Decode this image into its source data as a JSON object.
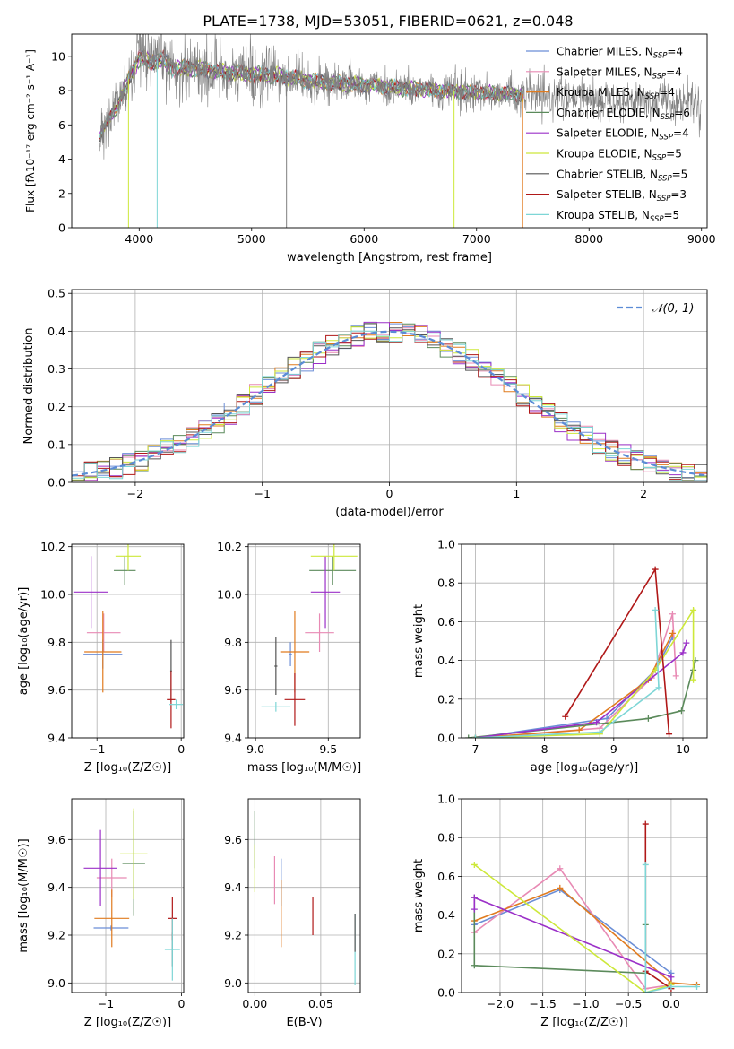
{
  "figure_title": "PLATE=1738, MJD=53051, FIBERID=0621, z=0.048",
  "series_legend": [
    {
      "name": "Chabrier MILES, N",
      "sub": "SSP",
      "suffix": "=4",
      "color": "#6b8ed6"
    },
    {
      "name": "Salpeter MILES, N",
      "sub": "SSP",
      "suffix": "=4",
      "color": "#e88ab4"
    },
    {
      "name": "Kroupa MILES, N",
      "sub": "SSP",
      "suffix": "=4",
      "color": "#e07b1f"
    },
    {
      "name": "Chabrier ELODIE, N",
      "sub": "SSP",
      "suffix": "=6",
      "color": "#5b8a5b"
    },
    {
      "name": "Salpeter ELODIE, N",
      "sub": "SSP",
      "suffix": "=4",
      "color": "#9b30c8"
    },
    {
      "name": "Kroupa ELODIE, N",
      "sub": "SSP",
      "suffix": "=5",
      "color": "#cde83a"
    },
    {
      "name": "Chabrier STELIB, N",
      "sub": "SSP",
      "suffix": "=5",
      "color": "#555555"
    },
    {
      "name": "Salpeter STELIB, N",
      "sub": "SSP",
      "suffix": "=3",
      "color": "#b01818"
    },
    {
      "name": "Kroupa STELIB, N",
      "sub": "SSP",
      "suffix": "=5",
      "color": "#7ed6d6"
    }
  ],
  "chart_data": [
    {
      "id": "spectrum",
      "type": "line",
      "xlabel": "wavelength [Angstrom, rest frame]",
      "ylabel": "Flux [fλ10⁻¹⁷ erg cm⁻² s⁻¹ A⁻¹]",
      "xlim": [
        3400,
        9050
      ],
      "ylim": [
        0,
        11.3
      ],
      "xticks": [
        4000,
        5000,
        6000,
        7000,
        8000,
        9000
      ],
      "yticks": [
        0,
        2,
        4,
        6,
        8,
        10
      ],
      "data_color": "#808080",
      "continuum": {
        "x": [
          3650,
          3700,
          3800,
          3900,
          4000,
          4100,
          4200,
          4300,
          4500,
          4700,
          4900,
          5200,
          5500,
          5800,
          6100,
          6400,
          6700,
          7000,
          7300,
          7400
        ],
        "y": [
          5.3,
          6.0,
          7.0,
          8.6,
          9.9,
          9.7,
          9.8,
          9.3,
          9.3,
          9.1,
          9.0,
          8.9,
          8.6,
          8.4,
          8.3,
          8.1,
          8.0,
          7.9,
          7.8,
          7.8
        ]
      },
      "data_extent": [
        3650,
        9000
      ],
      "model_extent": [
        3650,
        7420
      ],
      "grid": false
    },
    {
      "id": "residuals",
      "type": "histogram",
      "xlabel": "(data-model)/error",
      "ylabel": "Normed distribution",
      "xlim": [
        -2.5,
        2.5
      ],
      "ylim": [
        0,
        0.51
      ],
      "xticks": [
        -2,
        -1,
        0,
        1,
        2
      ],
      "yticks": [
        0.0,
        0.1,
        0.2,
        0.3,
        0.4,
        0.5
      ],
      "bin_width": 0.1,
      "gaussian": {
        "mean": 0,
        "sigma": 1,
        "label": "𝒩(0, 1)",
        "color": "#5b8cd6"
      },
      "grid": true,
      "legend": "top-right"
    },
    {
      "id": "age_vs_Z",
      "type": "errorbar",
      "xlabel": "Z [log₁₀(Z/Z☉)]",
      "ylabel": "age  [log₁₀(age/yr)]",
      "xlim": [
        -1.3,
        0.03
      ],
      "ylim": [
        9.4,
        10.21
      ],
      "xticks": [
        -1,
        0
      ],
      "yticks": [
        9.4,
        9.6,
        9.8,
        10.0,
        10.2
      ],
      "grid": true,
      "points": [
        {
          "x": -0.93,
          "xerr": 0.23,
          "y": 9.75,
          "yerr": 0.06,
          "color": "#6b8ed6"
        },
        {
          "x": -0.92,
          "xerr": 0.2,
          "y": 9.84,
          "yerr": 0.08,
          "color": "#e88ab4"
        },
        {
          "x": -0.93,
          "xerr": 0.22,
          "y": 9.76,
          "yerr": 0.17,
          "color": "#e07b1f"
        },
        {
          "x": -0.67,
          "xerr": 0.13,
          "y": 10.1,
          "yerr": 0.06,
          "color": "#5b8a5b"
        },
        {
          "x": -1.07,
          "xerr": 0.2,
          "y": 10.01,
          "yerr": 0.15,
          "color": "#9b30c8"
        },
        {
          "x": -0.63,
          "xerr": 0.15,
          "y": 10.16,
          "yerr": 0.06,
          "color": "#cde83a"
        },
        {
          "x": -0.12,
          "xerr": 0.01,
          "y": 9.68,
          "yerr": 0.13,
          "color": "#555555"
        },
        {
          "x": -0.12,
          "xerr": 0.05,
          "y": 9.56,
          "yerr": 0.12,
          "color": "#b01818"
        },
        {
          "x": -0.06,
          "xerr": 0.08,
          "y": 9.54,
          "yerr": 0.02,
          "color": "#7ed6d6"
        }
      ]
    },
    {
      "id": "age_vs_mass",
      "type": "errorbar",
      "xlabel": "mass [log₁₀(M/M☉)]",
      "ylabel": "",
      "xlim": [
        8.95,
        9.72
      ],
      "ylim": [
        9.4,
        10.21
      ],
      "xticks": [
        9.0,
        9.5
      ],
      "yticks": [
        9.4,
        9.6,
        9.8,
        10.0,
        10.2
      ],
      "grid": true,
      "points": [
        {
          "x": 9.24,
          "xerr": 0.01,
          "y": 9.75,
          "yerr": 0.05,
          "color": "#6b8ed6"
        },
        {
          "x": 9.44,
          "xerr": 0.1,
          "y": 9.84,
          "yerr": 0.08,
          "color": "#e88ab4"
        },
        {
          "x": 9.27,
          "xerr": 0.1,
          "y": 9.76,
          "yerr": 0.17,
          "color": "#e07b1f"
        },
        {
          "x": 9.53,
          "xerr": 0.16,
          "y": 10.1,
          "yerr": 0.06,
          "color": "#5b8a5b"
        },
        {
          "x": 9.48,
          "xerr": 0.1,
          "y": 10.01,
          "yerr": 0.15,
          "color": "#9b30c8"
        },
        {
          "x": 9.54,
          "xerr": 0.16,
          "y": 10.16,
          "yerr": 0.06,
          "color": "#cde83a"
        },
        {
          "x": 9.14,
          "xerr": 0.01,
          "y": 9.7,
          "yerr": 0.12,
          "color": "#555555"
        },
        {
          "x": 9.27,
          "xerr": 0.07,
          "y": 9.56,
          "yerr": 0.11,
          "color": "#b01818"
        },
        {
          "x": 9.14,
          "xerr": 0.1,
          "y": 9.53,
          "yerr": 0.02,
          "color": "#7ed6d6"
        }
      ]
    },
    {
      "id": "weight_vs_age",
      "type": "line",
      "xlabel": "age  [log₁₀(age/yr)]",
      "ylabel": "mass weight",
      "xlim": [
        6.8,
        10.35
      ],
      "ylim": [
        0,
        1.0
      ],
      "xticks": [
        7,
        8,
        9,
        10
      ],
      "yticks": [
        0.0,
        0.2,
        0.4,
        0.6,
        0.8,
        1.0
      ],
      "grid": true,
      "series": [
        {
          "color": "#6b8ed6",
          "x": [
            7.0,
            8.9,
            9.6,
            9.85
          ],
          "y": [
            0.0,
            0.1,
            0.35,
            0.52
          ]
        },
        {
          "color": "#e88ab4",
          "x": [
            7.0,
            8.8,
            9.55,
            9.85,
            9.9
          ],
          "y": [
            0.0,
            0.05,
            0.31,
            0.64,
            0.32
          ]
        },
        {
          "color": "#e07b1f",
          "x": [
            7.0,
            8.5,
            9.5,
            9.85
          ],
          "y": [
            0.0,
            0.04,
            0.3,
            0.54
          ]
        },
        {
          "color": "#5b8a5b",
          "x": [
            6.9,
            9.5,
            9.98,
            10.18,
            10.15
          ],
          "y": [
            0.0,
            0.1,
            0.14,
            0.4,
            0.35
          ]
        },
        {
          "color": "#9b30c8",
          "x": [
            7.0,
            8.75,
            10.0,
            10.05
          ],
          "y": [
            0.0,
            0.08,
            0.44,
            0.49
          ]
        },
        {
          "color": "#cde83a",
          "x": [
            7.0,
            8.8,
            9.6,
            10.15,
            10.15
          ],
          "y": [
            0.0,
            0.02,
            0.35,
            0.66,
            0.3
          ]
        },
        {
          "color": "#b01818",
          "x": [
            8.3,
            9.6,
            9.8
          ],
          "y": [
            0.11,
            0.87,
            0.02
          ]
        },
        {
          "color": "#7ed6d6",
          "x": [
            7.0,
            8.8,
            9.65,
            9.6
          ],
          "y": [
            0.0,
            0.03,
            0.26,
            0.66
          ]
        }
      ]
    },
    {
      "id": "mass_vs_Z",
      "type": "errorbar",
      "xlabel": "Z [log₁₀(Z/Z☉)]",
      "ylabel": "mass [log₁₀(M/M☉)]",
      "xlim": [
        -1.45,
        0.03
      ],
      "ylim": [
        8.96,
        9.77
      ],
      "xticks": [
        -1,
        0
      ],
      "yticks": [
        9.0,
        9.2,
        9.4,
        9.6
      ],
      "grid": true,
      "points": [
        {
          "x": -0.93,
          "xerr": 0.23,
          "y": 9.23,
          "yerr": 0.01,
          "color": "#6b8ed6"
        },
        {
          "x": -0.92,
          "xerr": 0.2,
          "y": 9.44,
          "yerr": 0.08,
          "color": "#e88ab4"
        },
        {
          "x": -0.92,
          "xerr": 0.23,
          "y": 9.27,
          "yerr": 0.12,
          "color": "#e07b1f"
        },
        {
          "x": -0.63,
          "xerr": 0.15,
          "y": 9.5,
          "yerr": 0.22,
          "color": "#5b8a5b"
        },
        {
          "x": -1.07,
          "xerr": 0.22,
          "y": 9.48,
          "yerr": 0.16,
          "color": "#9b30c8"
        },
        {
          "x": -0.63,
          "xerr": 0.18,
          "y": 9.54,
          "yerr": 0.19,
          "color": "#cde83a"
        },
        {
          "x": -0.12,
          "xerr": 0.01,
          "y": 9.14,
          "yerr": 0.07,
          "color": "#555555"
        },
        {
          "x": -0.12,
          "xerr": 0.06,
          "y": 9.27,
          "yerr": 0.09,
          "color": "#b01818"
        },
        {
          "x": -0.12,
          "xerr": 0.1,
          "y": 9.14,
          "yerr": 0.13,
          "color": "#7ed6d6"
        }
      ]
    },
    {
      "id": "mass_vs_ebv",
      "type": "errorbar",
      "xlabel": "E(B-V)",
      "ylabel": "",
      "xlim": [
        -0.005,
        0.08
      ],
      "ylim": [
        8.96,
        9.77
      ],
      "xticks": [
        0.0,
        0.05
      ],
      "xtick_labels": [
        "0.00",
        "0.05"
      ],
      "yticks": [
        9.0,
        9.2,
        9.4,
        9.6
      ],
      "grid": true,
      "points": [
        {
          "x": 0.02,
          "xerr": 0,
          "y": 9.42,
          "yerr": 0.1,
          "color": "#6b8ed6"
        },
        {
          "x": 0.015,
          "xerr": 0,
          "y": 9.43,
          "yerr": 0.1,
          "color": "#e88ab4"
        },
        {
          "x": 0.02,
          "xerr": 0,
          "y": 9.29,
          "yerr": 0.14,
          "color": "#e07b1f"
        },
        {
          "x": 0.0,
          "xerr": 0,
          "y": 9.6,
          "yerr": 0.12,
          "color": "#5b8a5b"
        },
        {
          "x": 0.0,
          "xerr": 0,
          "y": 9.48,
          "yerr": 0.1,
          "color": "#cde83a"
        },
        {
          "x": 0.044,
          "xerr": 0,
          "y": 9.28,
          "yerr": 0.08,
          "color": "#b01818"
        },
        {
          "x": 0.076,
          "xerr": 0,
          "y": 9.14,
          "yerr": 0.15,
          "color": "#7ed6d6"
        },
        {
          "x": 0.076,
          "xerr": 0,
          "y": 9.21,
          "yerr": 0.08,
          "color": "#555555"
        }
      ]
    },
    {
      "id": "weight_vs_Z",
      "type": "line",
      "xlabel": "Z [log₁₀(Z/Z☉)]",
      "ylabel": "mass weight",
      "xlim": [
        -2.45,
        0.42
      ],
      "ylim": [
        0,
        1.0
      ],
      "xticks": [
        -2.0,
        -1.5,
        -1.0,
        -0.5,
        0.0
      ],
      "yticks": [
        0.0,
        0.2,
        0.4,
        0.6,
        0.8,
        1.0
      ],
      "grid": true,
      "series": [
        {
          "color": "#6b8ed6",
          "x": [
            -2.3,
            -1.3,
            0.0,
            0.0
          ],
          "y": [
            0.35,
            0.53,
            0.1,
            0.05
          ]
        },
        {
          "color": "#e88ab4",
          "x": [
            -2.3,
            -1.3,
            -0.3,
            0.0
          ],
          "y": [
            0.31,
            0.64,
            0.02,
            0.04
          ]
        },
        {
          "color": "#e07b1f",
          "x": [
            -2.3,
            -1.3,
            0.0,
            0.3
          ],
          "y": [
            0.37,
            0.54,
            0.05,
            0.04
          ]
        },
        {
          "color": "#5b8a5b",
          "x": [
            -2.3,
            -2.3,
            -0.3,
            -0.3
          ],
          "y": [
            0.49,
            0.14,
            0.1,
            0.35
          ]
        },
        {
          "color": "#9b30c8",
          "x": [
            -2.3,
            -2.3,
            0.0
          ],
          "y": [
            0.43,
            0.49,
            0.08
          ]
        },
        {
          "color": "#cde83a",
          "x": [
            -2.3,
            -0.3,
            0.0
          ],
          "y": [
            0.66,
            0.0,
            0.04
          ]
        },
        {
          "color": "#b01818",
          "x": [
            -0.3,
            -0.3,
            0.0
          ],
          "y": [
            0.87,
            0.11,
            0.02
          ]
        },
        {
          "color": "#7ed6d6",
          "x": [
            -0.3,
            -0.3,
            0.0,
            0.3
          ],
          "y": [
            0.66,
            0.0,
            0.03,
            0.03
          ]
        }
      ]
    }
  ]
}
